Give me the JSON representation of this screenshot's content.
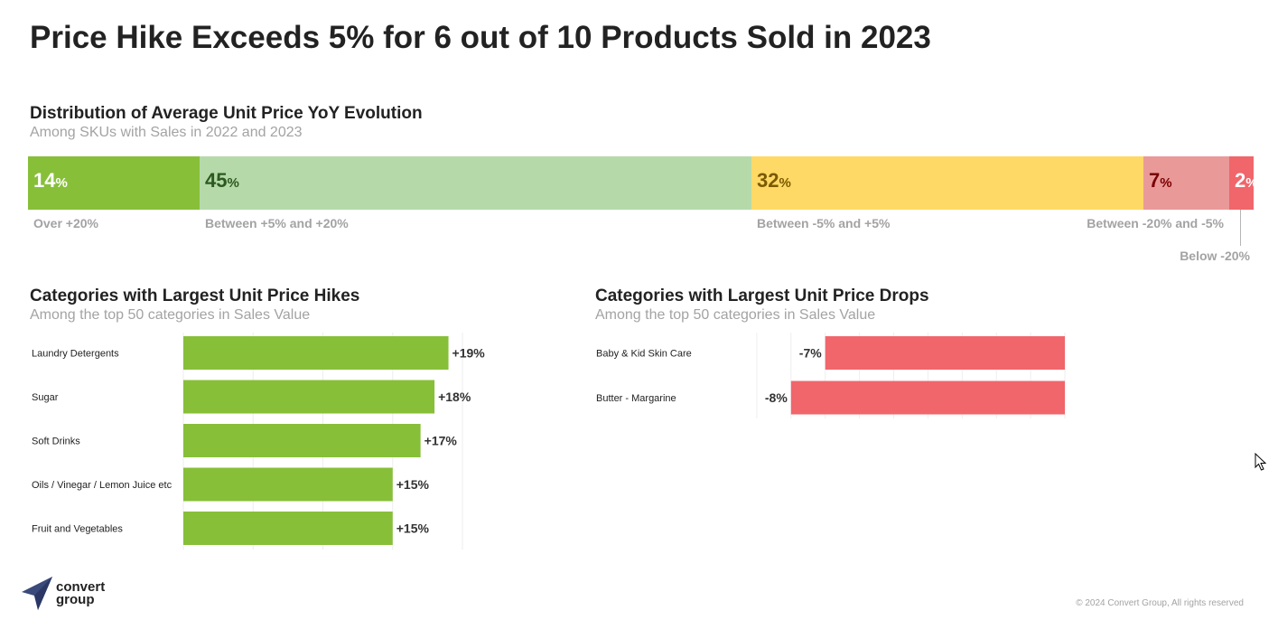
{
  "title": "Price Hike Exceeds 5% for 6 out of 10 Products Sold in 2023",
  "distribution": {
    "title": "Distribution of Average Unit Price YoY Evolution",
    "subtitle": "Among SKUs with Sales in 2022 and 2023",
    "segments": [
      {
        "value": 14,
        "label": "Over +20%",
        "color": "#87bf39",
        "text_color": "#ffffff"
      },
      {
        "value": 45,
        "label": "Between +5% and +20%",
        "color": "#b6d9aa",
        "text_color": "#2b5a1e"
      },
      {
        "value": 32,
        "label": "Between -5% and +5%",
        "color": "#ffd966",
        "text_color": "#7a5a00"
      },
      {
        "value": 7,
        "label": "Between -20% and -5%",
        "color": "#ea9999",
        "text_color": "#7a0000"
      },
      {
        "value": 2,
        "label": "Below -20%",
        "color": "#f0666b",
        "text_color": "#ffffff"
      }
    ],
    "percent_symbol": "%"
  },
  "hikes": {
    "title": "Categories with Largest Unit Price Hikes",
    "subtitle": "Among the top 50 categories in Sales Value"
  },
  "drops": {
    "title": "Categories with Largest Unit Price Drops",
    "subtitle": "Among the top 50 categories in Sales Value"
  },
  "chart_data": [
    {
      "type": "bar",
      "orientation": "horizontal",
      "title": "Distribution of Average Unit Price YoY Evolution",
      "subtitle": "Among SKUs with Sales in 2022 and 2023",
      "stacked": true,
      "categories": [
        "Over +20%",
        "Between +5% and +20%",
        "Between -5% and +5%",
        "Between -20% and -5%",
        "Below -20%"
      ],
      "values": [
        14,
        45,
        32,
        7,
        2
      ],
      "unit": "%"
    },
    {
      "type": "bar",
      "orientation": "horizontal",
      "title": "Categories with Largest Unit Price Hikes",
      "subtitle": "Among the top 50 categories in Sales Value",
      "categories": [
        "Laundry Detergents",
        "Sugar",
        "Soft Drinks",
        "Oils / Vinegar / Lemon Juice etc",
        "Fruit and Vegetables"
      ],
      "values": [
        19,
        18,
        17,
        15,
        15
      ],
      "labels": [
        "+19%",
        "+18%",
        "+17%",
        "+15%",
        "+15%"
      ],
      "color": "#87bf39",
      "grid": true
    },
    {
      "type": "bar",
      "orientation": "horizontal",
      "title": "Categories with Largest Unit Price Drops",
      "subtitle": "Among the top 50 categories in Sales Value",
      "categories": [
        "Baby & Kid Skin Care",
        "Butter - Margarine"
      ],
      "values": [
        -7,
        -8
      ],
      "labels": [
        "-7%",
        "-8%"
      ],
      "color": "#f0666b",
      "grid": true
    }
  ],
  "brand": {
    "line1": "convert",
    "line2": "group",
    "logo_color": "#3a4a7a"
  },
  "copyright": "© 2024 Convert Group, All rights reserved"
}
